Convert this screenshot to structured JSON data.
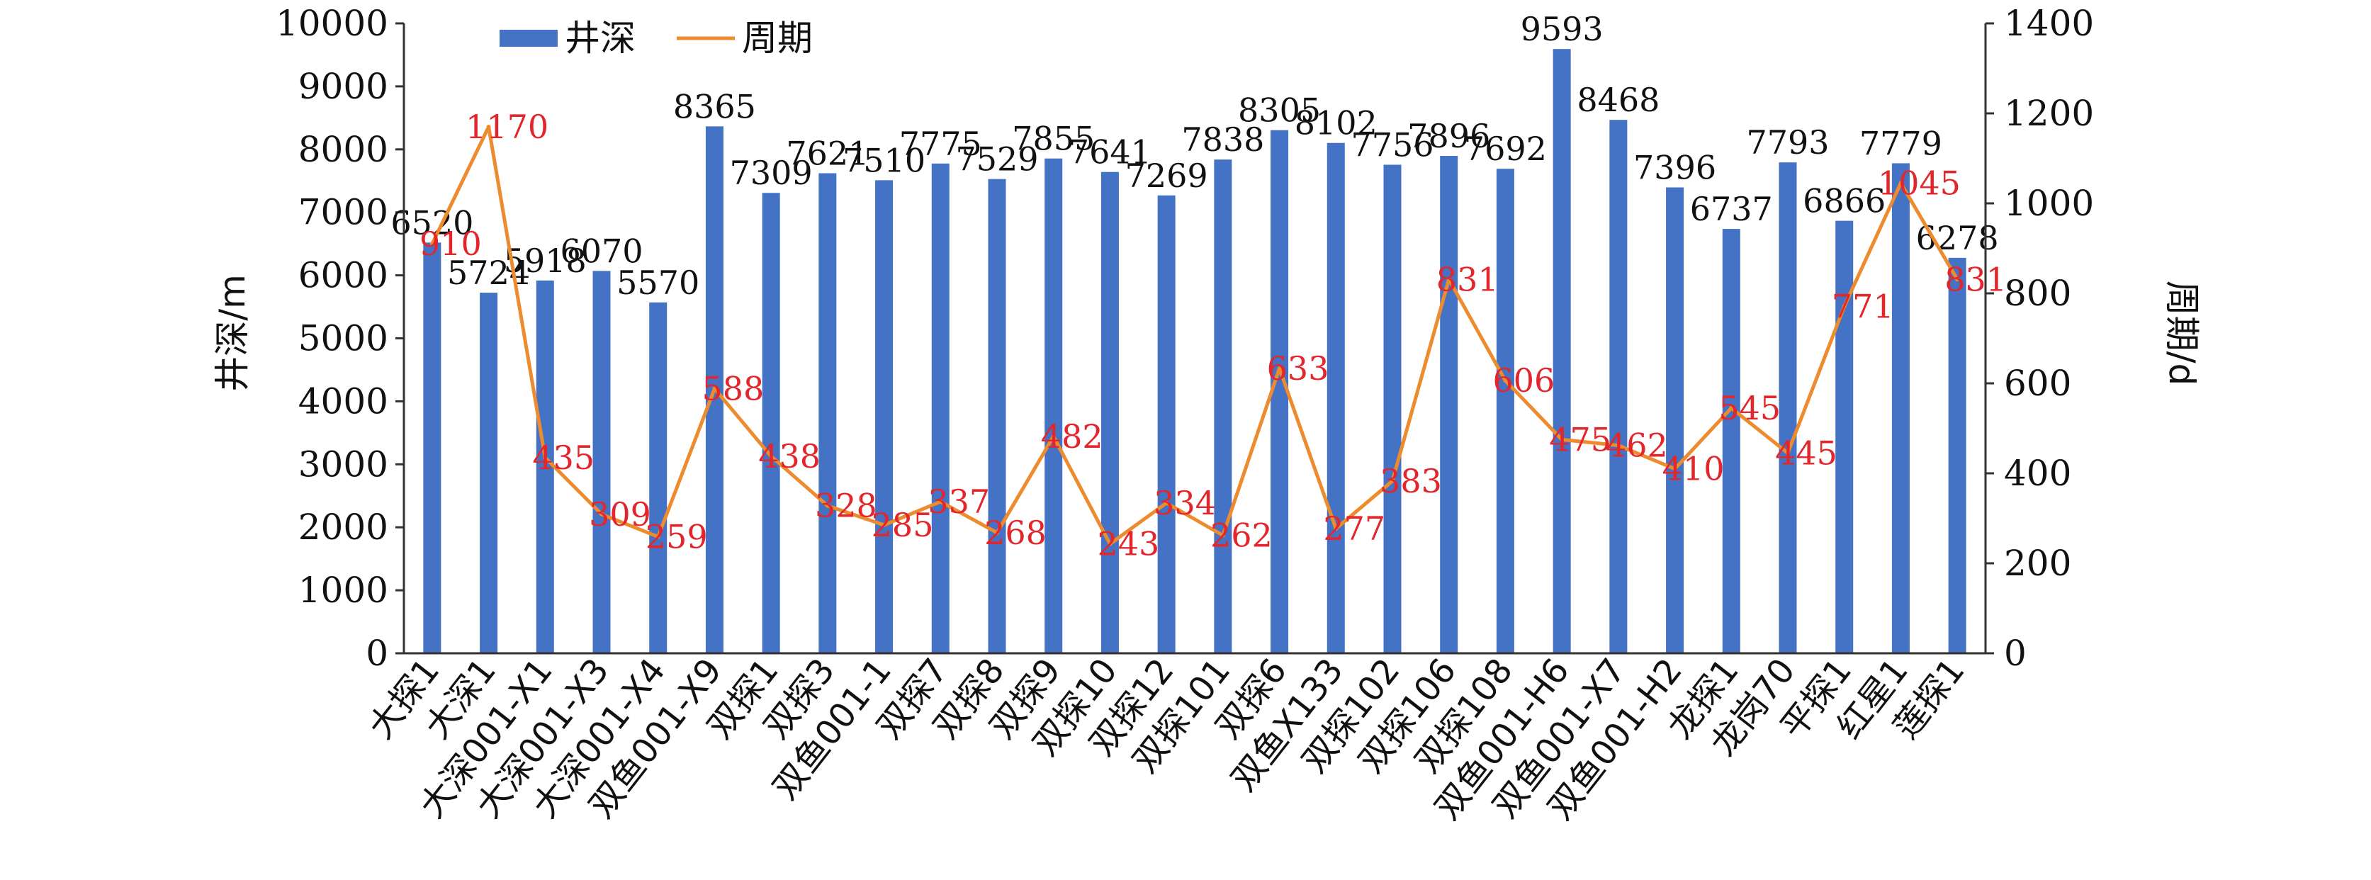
{
  "chart_data": {
    "type": "bar",
    "categories": [
      "大探1",
      "大深1",
      "大深001-X1",
      "大深001-X3",
      "大深001-X4",
      "双鱼001-X9",
      "双探1",
      "双探3",
      "双鱼001-1",
      "双探7",
      "双探8",
      "双探9",
      "双探10",
      "双探12",
      "双探101",
      "双探6",
      "双鱼X133",
      "双探102",
      "双探106",
      "双探108",
      "双鱼001-H6",
      "双鱼001-X7",
      "双鱼001-H2",
      "龙探1",
      "龙岗70",
      "平探1",
      "红星1",
      "莲探1"
    ],
    "series": [
      {
        "name": "井深",
        "type": "bar",
        "axis": "left",
        "color": "#4472C4",
        "values": [
          6520,
          5724,
          5918,
          6070,
          5570,
          8365,
          7309,
          7621,
          7510,
          7775,
          7529,
          7855,
          7641,
          7269,
          7838,
          8305,
          8102,
          7756,
          7896,
          7692,
          9593,
          8468,
          7396,
          6737,
          7793,
          6866,
          7779,
          6278
        ]
      },
      {
        "name": "周期",
        "type": "line",
        "axis": "right",
        "color": "#ED8B2F",
        "label_color": "#E3262B",
        "values": [
          910,
          1170,
          435,
          309,
          259,
          588,
          438,
          328,
          285,
          337,
          268,
          482,
          243,
          334,
          262,
          633,
          277,
          383,
          831,
          606,
          475,
          462,
          410,
          545,
          445,
          771,
          1045,
          831
        ]
      }
    ],
    "y_left": {
      "label": "井深/m",
      "ylim": [
        0,
        10000
      ],
      "ticks": [
        0,
        1000,
        2000,
        3000,
        4000,
        5000,
        6000,
        7000,
        8000,
        9000,
        10000
      ]
    },
    "y_right": {
      "label": "周期/d",
      "ylim": [
        0,
        1400
      ],
      "ticks": [
        0,
        200,
        400,
        600,
        800,
        1000,
        1200,
        1400
      ]
    },
    "grid": false,
    "legend_position": "top-left"
  }
}
